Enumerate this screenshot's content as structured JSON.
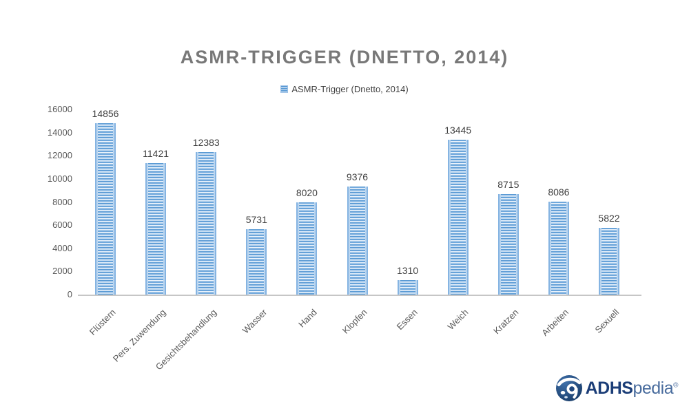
{
  "chart_data": {
    "type": "bar",
    "title": "ASMR-TRIGGER (DNETTO, 2014)",
    "legend_label": "ASMR-Trigger (Dnetto, 2014)",
    "legend_position": "top",
    "categories": [
      "Flüstern",
      "Pers. Zuwendung",
      "Gesichtsbehandlung",
      "Wasser",
      "Hand",
      "Klopfen",
      "Essen",
      "Weich",
      "Kratzen",
      "Arbeiten",
      "Sexuell"
    ],
    "values": [
      14856,
      11421,
      12383,
      5731,
      8020,
      9376,
      1310,
      13445,
      8715,
      8086,
      5822
    ],
    "xlabel": "",
    "ylabel": "",
    "ylim": [
      0,
      16000
    ],
    "ytick_step": 2000,
    "ytick_labels": [
      "0",
      "2000",
      "4000",
      "6000",
      "8000",
      "10000",
      "12000",
      "14000",
      "16000"
    ],
    "grid": false,
    "bar_color": "#5b9bd5",
    "bar_stripe_color": "#eaf2fb"
  },
  "colors": {
    "title": "#787878",
    "axis_labels": "#595959",
    "value_labels": "#404040",
    "axis_line": "#c6c6c6"
  },
  "branding": {
    "name": "ADHSpedia",
    "text_primary": "ADHS",
    "text_secondary": "pedia",
    "registered_mark": "®",
    "color_primary": "#1c3e78",
    "color_secondary": "#4a6d9e"
  }
}
